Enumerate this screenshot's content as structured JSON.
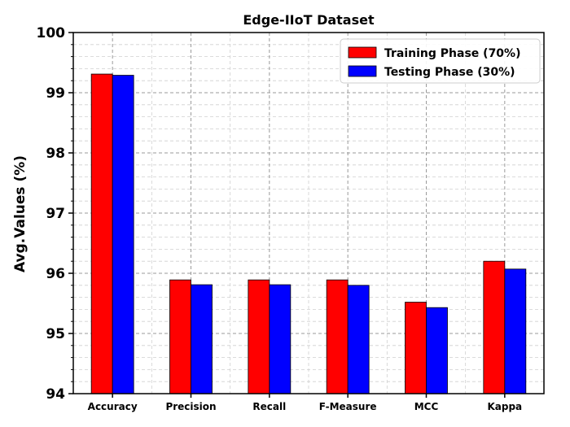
{
  "chart_data": {
    "type": "bar",
    "title": "Edge-IIoT Dataset",
    "xlabel": "",
    "ylabel": "Avg.Values (%)",
    "ylim": [
      94,
      100
    ],
    "yticks": [
      94,
      95,
      96,
      97,
      98,
      99,
      100
    ],
    "categories": [
      "Accuracy",
      "Precision",
      "Recall",
      "F-Measure",
      "MCC",
      "Kappa"
    ],
    "series": [
      {
        "name": "Training Phase (70%)",
        "color": "#ff0000",
        "values": [
          99.31,
          95.89,
          95.89,
          95.89,
          95.52,
          96.2
        ]
      },
      {
        "name": "Testing Phase (30%)",
        "color": "#0000ff",
        "values": [
          99.29,
          95.81,
          95.81,
          95.8,
          95.43,
          96.07
        ]
      }
    ],
    "grid": true,
    "legend_position": "top-right"
  }
}
